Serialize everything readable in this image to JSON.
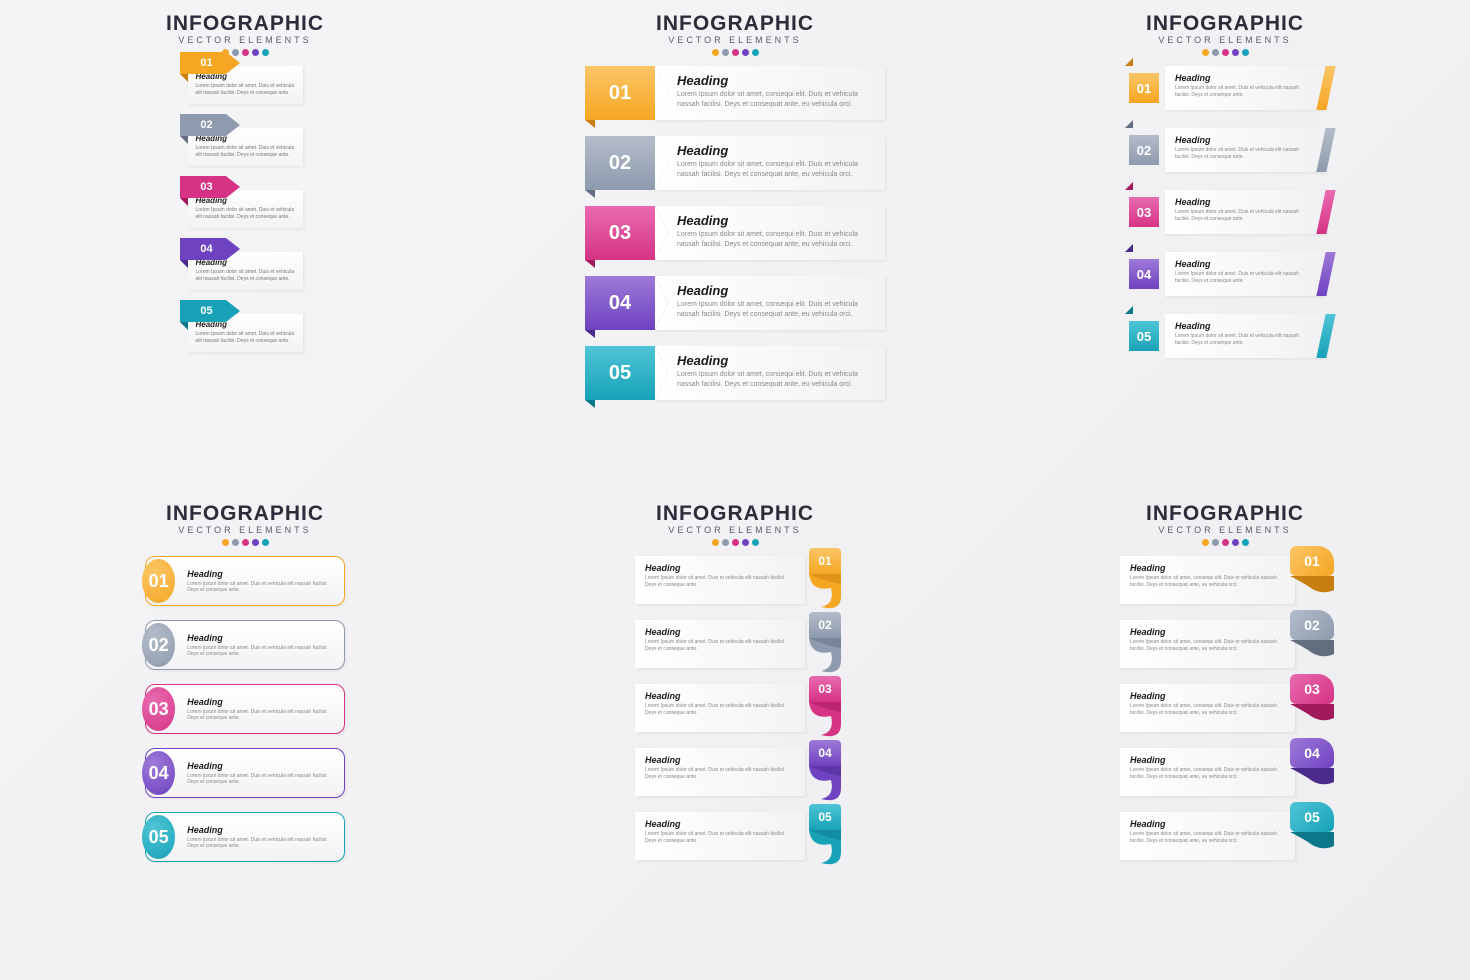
{
  "type": "infographic",
  "title": "INFOGRAPHIC",
  "subtitle": "VECTOR ELEMENTS",
  "dot_colors": [
    "#f5a623",
    "#8e9aae",
    "#d63384",
    "#6f42c1",
    "#17a2b8"
  ],
  "heading": "Heading",
  "body_short": "Lorem Ipsum dolor sit amet. Duis et vehicula elit nassah facilisi. Deys et conseque ante.",
  "body_long": "Lorem Ipsum dolor sit amet, consequi elit. Duis et vehicula nassah facilisi. Deys et consequat ante, eu vehicula orci.",
  "palette": [
    {
      "num": "01",
      "main": "#f5a623",
      "light": "#fbc666",
      "dark": "#c97f10"
    },
    {
      "num": "02",
      "main": "#8e9aae",
      "light": "#b3bcc9",
      "dark": "#626d80"
    },
    {
      "num": "03",
      "main": "#d63384",
      "light": "#e86bb0",
      "dark": "#a01a5c"
    },
    {
      "num": "04",
      "main": "#6f42c1",
      "light": "#9d7ad8",
      "dark": "#4a2a8a"
    },
    {
      "num": "05",
      "main": "#17a2b8",
      "light": "#4fc5d6",
      "dark": "#0d7688"
    }
  ],
  "variants": [
    {
      "id": "v1",
      "desc": "small arrow tag top-left"
    },
    {
      "id": "v2",
      "desc": "large arrow number left"
    },
    {
      "id": "v3",
      "desc": "square number + right skew accent"
    },
    {
      "id": "v4",
      "desc": "rounded bordered pill + circle number"
    },
    {
      "id": "v5",
      "desc": "text left, ribbon curl with number right"
    },
    {
      "id": "v6",
      "desc": "text left, rounded tab badge right"
    }
  ],
  "styling": {
    "background": "#f3f3f5",
    "title_color": "#2c2c3a",
    "title_fontsize": 21,
    "subtitle_fontsize": 9,
    "heading_fontsize_small": 9,
    "heading_fontsize_large": 13,
    "body_color": "#888888",
    "card_bg": "#ffffff"
  }
}
